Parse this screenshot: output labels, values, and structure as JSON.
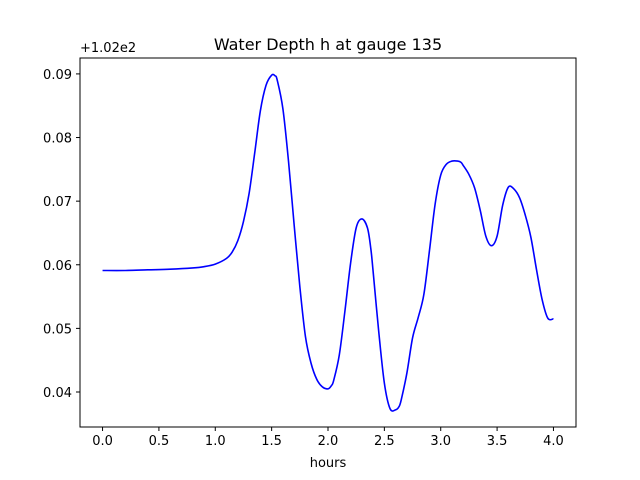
{
  "chart_data": {
    "type": "line",
    "title": "Water Depth h at gauge 135",
    "xlabel": "hours",
    "ylabel": "",
    "y_offset_label": "+1.02e2",
    "xlim": [
      -0.2,
      4.2
    ],
    "ylim": [
      0.0345,
      0.0925
    ],
    "x_ticks": [
      0.0,
      0.5,
      1.0,
      1.5,
      2.0,
      2.5,
      3.0,
      3.5,
      4.0
    ],
    "x_tick_labels": [
      "0.0",
      "0.5",
      "1.0",
      "1.5",
      "2.0",
      "2.5",
      "3.0",
      "3.5",
      "4.0"
    ],
    "y_ticks": [
      0.04,
      0.05,
      0.06,
      0.07,
      0.08,
      0.09
    ],
    "y_tick_labels": [
      "0.04",
      "0.05",
      "0.06",
      "0.07",
      "0.08",
      "0.09"
    ],
    "grid": false,
    "line_color": "#0000ff",
    "series": [
      {
        "x": [
          0.0,
          0.2,
          0.4,
          0.6,
          0.8,
          0.9,
          1.0,
          1.1,
          1.15,
          1.2,
          1.25,
          1.3,
          1.35,
          1.4,
          1.45,
          1.5,
          1.53,
          1.55,
          1.6,
          1.65,
          1.7,
          1.75,
          1.8,
          1.85,
          1.9,
          1.95,
          2.0,
          2.03,
          2.05,
          2.1,
          2.15,
          2.2,
          2.25,
          2.3,
          2.35,
          2.38,
          2.4,
          2.45,
          2.5,
          2.55,
          2.6,
          2.63,
          2.65,
          2.7,
          2.75,
          2.8,
          2.85,
          2.9,
          2.95,
          3.0,
          3.05,
          3.1,
          3.15,
          3.18,
          3.2,
          3.25,
          3.3,
          3.35,
          3.4,
          3.45,
          3.5,
          3.55,
          3.6,
          3.65,
          3.7,
          3.75,
          3.8,
          3.85,
          3.9,
          3.95,
          4.0
        ],
        "y": [
          0.0591,
          0.0591,
          0.0592,
          0.0593,
          0.0595,
          0.0597,
          0.0601,
          0.061,
          0.062,
          0.0638,
          0.0668,
          0.0712,
          0.0776,
          0.0842,
          0.0882,
          0.0898,
          0.0897,
          0.089,
          0.0845,
          0.0762,
          0.0662,
          0.0566,
          0.0487,
          0.0445,
          0.042,
          0.0408,
          0.0405,
          0.041,
          0.0418,
          0.0458,
          0.0527,
          0.0602,
          0.0658,
          0.0672,
          0.0658,
          0.0625,
          0.059,
          0.0495,
          0.0414,
          0.0374,
          0.0372,
          0.0377,
          0.0388,
          0.043,
          0.0485,
          0.0517,
          0.0553,
          0.0622,
          0.0695,
          0.0741,
          0.0758,
          0.0763,
          0.0763,
          0.0761,
          0.0756,
          0.0742,
          0.0721,
          0.0686,
          0.0645,
          0.063,
          0.0645,
          0.0694,
          0.0722,
          0.0719,
          0.0705,
          0.0678,
          0.0643,
          0.0592,
          0.0545,
          0.0516,
          0.0515
        ]
      }
    ]
  }
}
